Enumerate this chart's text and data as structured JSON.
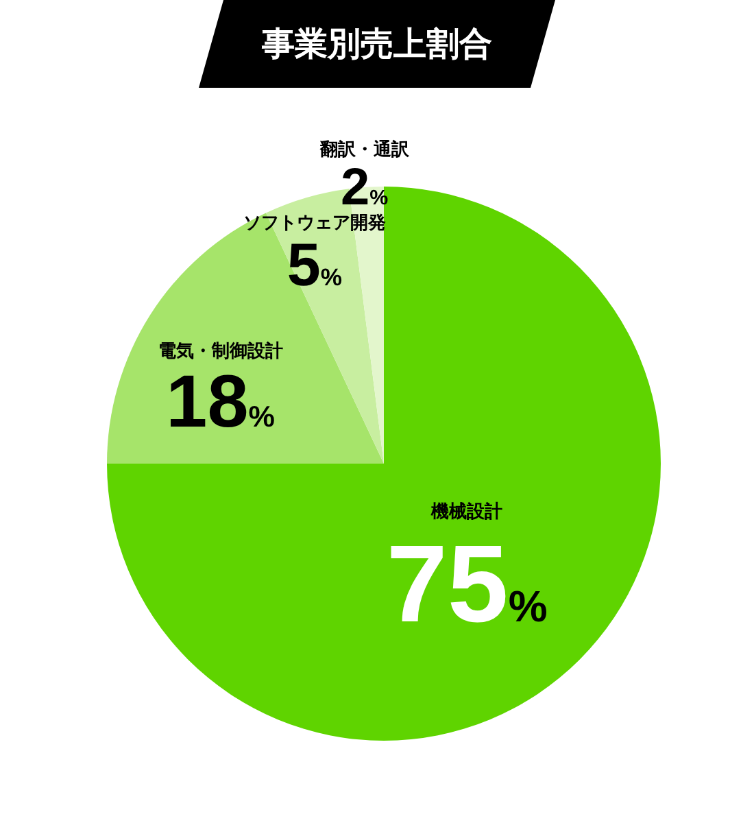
{
  "chart_data": {
    "type": "pie",
    "title": "事業別売上割合",
    "categories": [
      "機械設計",
      "電気・制御設計",
      "ソフトウェア開発",
      "翻訳・通訳"
    ],
    "values": [
      75,
      18,
      5,
      2
    ],
    "value_labels": [
      "75%",
      "18%",
      "5%",
      "2%"
    ],
    "colors": [
      "#5fd400",
      "#a6e46a",
      "#c8eea0",
      "#e3f6cc"
    ]
  }
}
